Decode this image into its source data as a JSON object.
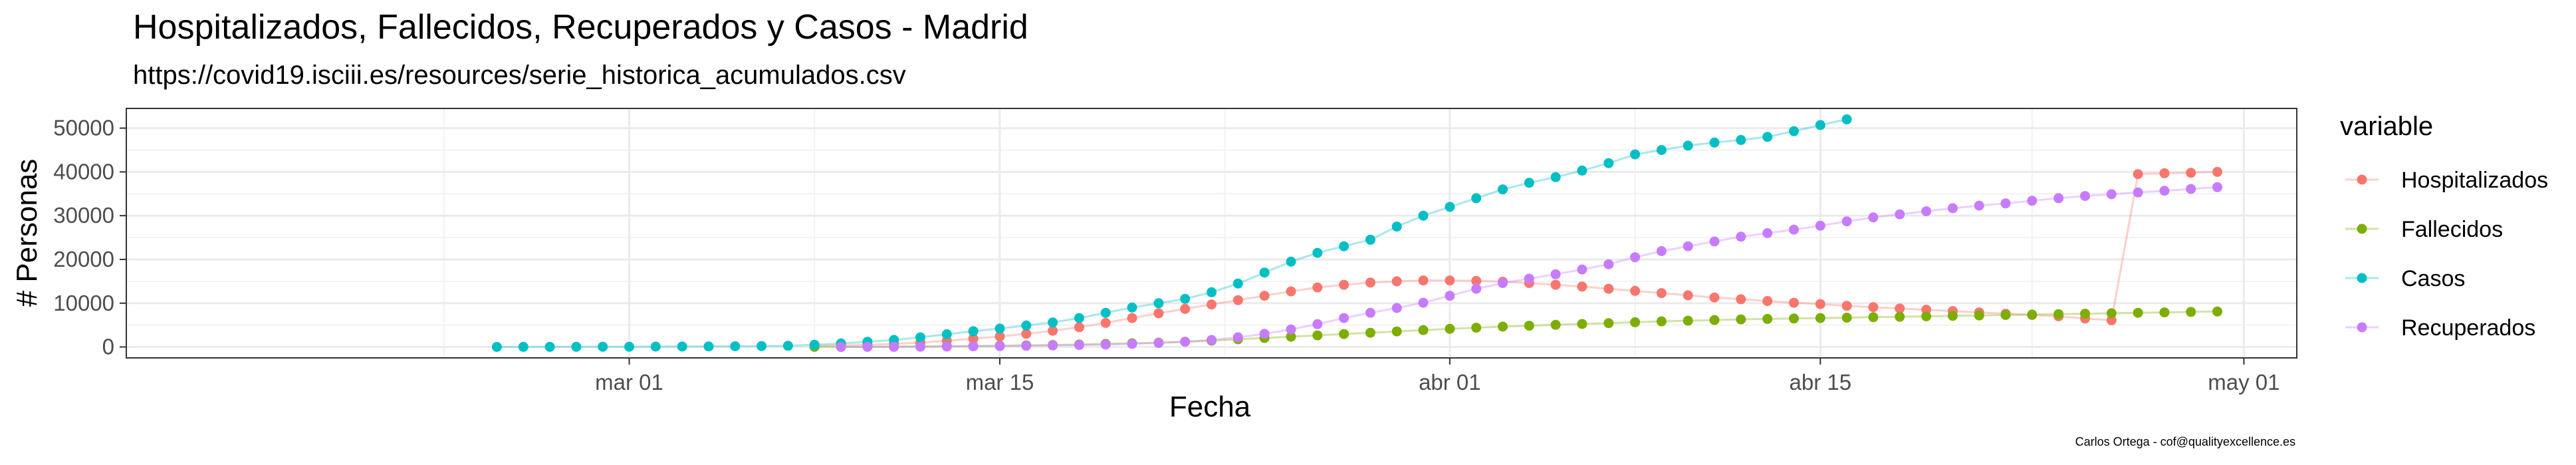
{
  "chart_data": {
    "type": "line",
    "title": "Hospitalizados, Fallecidos, Recuperados y Casos - Madrid",
    "subtitle": "https://covid19.isciii.es/resources/serie_historica_acumulados.csv",
    "xlabel": "Fecha",
    "ylabel": "# Personas",
    "caption": "Carlos Ortega - cof@qualityexcellence.es",
    "x_axis": "date",
    "xlim": [
      "2020-02-11",
      "2020-05-03"
    ],
    "ylim": [
      -2500,
      54500
    ],
    "grid": true,
    "x_ticks": [
      {
        "date": "2020-03-01",
        "label": "mar 01"
      },
      {
        "date": "2020-03-15",
        "label": "mar 15"
      },
      {
        "date": "2020-04-01",
        "label": "abr 01"
      },
      {
        "date": "2020-04-15",
        "label": "abr 15"
      },
      {
        "date": "2020-05-01",
        "label": "may 01"
      }
    ],
    "y_ticks": [
      0,
      10000,
      20000,
      30000,
      40000,
      50000
    ],
    "legend": {
      "title": "variable",
      "position": "right"
    },
    "series": [
      {
        "name": "Hospitalizados",
        "color": "#F8766D",
        "points": [
          [
            "2020-03-08",
            240
          ],
          [
            "2020-03-09",
            340
          ],
          [
            "2020-03-10",
            480
          ],
          [
            "2020-03-11",
            700
          ],
          [
            "2020-03-12",
            1000
          ],
          [
            "2020-03-13",
            1400
          ],
          [
            "2020-03-14",
            1900
          ],
          [
            "2020-03-15",
            2400
          ],
          [
            "2020-03-16",
            3000
          ],
          [
            "2020-03-17",
            3700
          ],
          [
            "2020-03-18",
            4500
          ],
          [
            "2020-03-19",
            5500
          ],
          [
            "2020-03-20",
            6600
          ],
          [
            "2020-03-21",
            7700
          ],
          [
            "2020-03-22",
            8700
          ],
          [
            "2020-03-23",
            9700
          ],
          [
            "2020-03-24",
            10700
          ],
          [
            "2020-03-25",
            11700
          ],
          [
            "2020-03-26",
            12700
          ],
          [
            "2020-03-27",
            13600
          ],
          [
            "2020-03-28",
            14200
          ],
          [
            "2020-03-29",
            14700
          ],
          [
            "2020-03-30",
            15000
          ],
          [
            "2020-03-31",
            15200
          ],
          [
            "2020-04-01",
            15200
          ],
          [
            "2020-04-02",
            15100
          ],
          [
            "2020-04-03",
            14900
          ],
          [
            "2020-04-04",
            14600
          ],
          [
            "2020-04-05",
            14200
          ],
          [
            "2020-04-06",
            13800
          ],
          [
            "2020-04-07",
            13300
          ],
          [
            "2020-04-08",
            12800
          ],
          [
            "2020-04-09",
            12300
          ],
          [
            "2020-04-10",
            11800
          ],
          [
            "2020-04-11",
            11300
          ],
          [
            "2020-04-12",
            10900
          ],
          [
            "2020-04-13",
            10500
          ],
          [
            "2020-04-14",
            10100
          ],
          [
            "2020-04-15",
            9800
          ],
          [
            "2020-04-16",
            9400
          ],
          [
            "2020-04-17",
            9100
          ],
          [
            "2020-04-18",
            8800
          ],
          [
            "2020-04-19",
            8500
          ],
          [
            "2020-04-20",
            8200
          ],
          [
            "2020-04-21",
            7900
          ],
          [
            "2020-04-22",
            7600
          ],
          [
            "2020-04-23",
            7300
          ],
          [
            "2020-04-24",
            7000
          ],
          [
            "2020-04-25",
            6500
          ],
          [
            "2020-04-26",
            6100
          ],
          [
            "2020-04-27",
            39500
          ],
          [
            "2020-04-28",
            39700
          ],
          [
            "2020-04-29",
            39800
          ],
          [
            "2020-04-30",
            40000
          ]
        ]
      },
      {
        "name": "Fallecidos",
        "color": "#7CAE00",
        "points": [
          [
            "2020-03-08",
            20
          ],
          [
            "2020-03-09",
            30
          ],
          [
            "2020-03-10",
            50
          ],
          [
            "2020-03-11",
            80
          ],
          [
            "2020-03-12",
            120
          ],
          [
            "2020-03-13",
            170
          ],
          [
            "2020-03-14",
            220
          ],
          [
            "2020-03-15",
            300
          ],
          [
            "2020-03-16",
            380
          ],
          [
            "2020-03-17",
            450
          ],
          [
            "2020-03-18",
            550
          ],
          [
            "2020-03-19",
            700
          ],
          [
            "2020-03-20",
            850
          ],
          [
            "2020-03-21",
            1000
          ],
          [
            "2020-03-22",
            1200
          ],
          [
            "2020-03-23",
            1450
          ],
          [
            "2020-03-24",
            1750
          ],
          [
            "2020-03-25",
            2050
          ],
          [
            "2020-03-26",
            2350
          ],
          [
            "2020-03-27",
            2650
          ],
          [
            "2020-03-28",
            2950
          ],
          [
            "2020-03-29",
            3250
          ],
          [
            "2020-03-30",
            3550
          ],
          [
            "2020-03-31",
            3850
          ],
          [
            "2020-04-01",
            4150
          ],
          [
            "2020-04-02",
            4400
          ],
          [
            "2020-04-03",
            4650
          ],
          [
            "2020-04-04",
            4850
          ],
          [
            "2020-04-05",
            5050
          ],
          [
            "2020-04-06",
            5250
          ],
          [
            "2020-04-07",
            5450
          ],
          [
            "2020-04-08",
            5650
          ],
          [
            "2020-04-09",
            5850
          ],
          [
            "2020-04-10",
            6000
          ],
          [
            "2020-04-11",
            6150
          ],
          [
            "2020-04-12",
            6300
          ],
          [
            "2020-04-13",
            6400
          ],
          [
            "2020-04-14",
            6500
          ],
          [
            "2020-04-15",
            6600
          ],
          [
            "2020-04-16",
            6700
          ],
          [
            "2020-04-17",
            6800
          ],
          [
            "2020-04-18",
            6900
          ],
          [
            "2020-04-19",
            7000
          ],
          [
            "2020-04-20",
            7100
          ],
          [
            "2020-04-21",
            7200
          ],
          [
            "2020-04-22",
            7300
          ],
          [
            "2020-04-23",
            7400
          ],
          [
            "2020-04-24",
            7500
          ],
          [
            "2020-04-25",
            7600
          ],
          [
            "2020-04-26",
            7700
          ],
          [
            "2020-04-27",
            7800
          ],
          [
            "2020-04-28",
            7900
          ],
          [
            "2020-04-29",
            8000
          ],
          [
            "2020-04-30",
            8100
          ]
        ]
      },
      {
        "name": "Casos",
        "color": "#00BFC4",
        "points": [
          [
            "2020-02-25",
            10
          ],
          [
            "2020-02-26",
            20
          ],
          [
            "2020-02-27",
            30
          ],
          [
            "2020-02-28",
            40
          ],
          [
            "2020-02-29",
            50
          ],
          [
            "2020-03-01",
            60
          ],
          [
            "2020-03-02",
            80
          ],
          [
            "2020-03-03",
            100
          ],
          [
            "2020-03-04",
            130
          ],
          [
            "2020-03-05",
            160
          ],
          [
            "2020-03-06",
            200
          ],
          [
            "2020-03-07",
            260
          ],
          [
            "2020-03-08",
            500
          ],
          [
            "2020-03-09",
            800
          ],
          [
            "2020-03-10",
            1200
          ],
          [
            "2020-03-11",
            1600
          ],
          [
            "2020-03-12",
            2200
          ],
          [
            "2020-03-13",
            2900
          ],
          [
            "2020-03-14",
            3600
          ],
          [
            "2020-03-15",
            4200
          ],
          [
            "2020-03-16",
            4900
          ],
          [
            "2020-03-17",
            5600
          ],
          [
            "2020-03-18",
            6600
          ],
          [
            "2020-03-19",
            7800
          ],
          [
            "2020-03-20",
            9000
          ],
          [
            "2020-03-21",
            10000
          ],
          [
            "2020-03-22",
            11000
          ],
          [
            "2020-03-23",
            12500
          ],
          [
            "2020-03-24",
            14500
          ],
          [
            "2020-03-25",
            17000
          ],
          [
            "2020-03-26",
            19500
          ],
          [
            "2020-03-27",
            21500
          ],
          [
            "2020-03-28",
            23000
          ],
          [
            "2020-03-29",
            24500
          ],
          [
            "2020-03-30",
            27500
          ],
          [
            "2020-03-31",
            30000
          ],
          [
            "2020-04-01",
            32000
          ],
          [
            "2020-04-02",
            34000
          ],
          [
            "2020-04-03",
            36000
          ],
          [
            "2020-04-04",
            37500
          ],
          [
            "2020-04-05",
            38800
          ],
          [
            "2020-04-06",
            40300
          ],
          [
            "2020-04-07",
            42000
          ],
          [
            "2020-04-08",
            44000
          ],
          [
            "2020-04-09",
            45000
          ],
          [
            "2020-04-10",
            46000
          ],
          [
            "2020-04-11",
            46700
          ],
          [
            "2020-04-12",
            47300
          ],
          [
            "2020-04-13",
            48000
          ],
          [
            "2020-04-14",
            49300
          ],
          [
            "2020-04-15",
            50700
          ],
          [
            "2020-04-16",
            52000
          ]
        ]
      },
      {
        "name": "Recuperados",
        "color": "#C77CFF",
        "points": [
          [
            "2020-03-09",
            0
          ],
          [
            "2020-03-10",
            10
          ],
          [
            "2020-03-11",
            30
          ],
          [
            "2020-03-12",
            60
          ],
          [
            "2020-03-13",
            100
          ],
          [
            "2020-03-14",
            150
          ],
          [
            "2020-03-15",
            200
          ],
          [
            "2020-03-16",
            270
          ],
          [
            "2020-03-17",
            350
          ],
          [
            "2020-03-18",
            450
          ],
          [
            "2020-03-19",
            560
          ],
          [
            "2020-03-20",
            700
          ],
          [
            "2020-03-21",
            900
          ],
          [
            "2020-03-22",
            1200
          ],
          [
            "2020-03-23",
            1600
          ],
          [
            "2020-03-24",
            2200
          ],
          [
            "2020-03-25",
            3000
          ],
          [
            "2020-03-26",
            4000
          ],
          [
            "2020-03-27",
            5200
          ],
          [
            "2020-03-28",
            6600
          ],
          [
            "2020-03-29",
            7800
          ],
          [
            "2020-03-30",
            8900
          ],
          [
            "2020-03-31",
            10100
          ],
          [
            "2020-04-01",
            11700
          ],
          [
            "2020-04-02",
            13300
          ],
          [
            "2020-04-03",
            14600
          ],
          [
            "2020-04-04",
            15600
          ],
          [
            "2020-04-05",
            16600
          ],
          [
            "2020-04-06",
            17700
          ],
          [
            "2020-04-07",
            18900
          ],
          [
            "2020-04-08",
            20500
          ],
          [
            "2020-04-09",
            21900
          ],
          [
            "2020-04-10",
            23000
          ],
          [
            "2020-04-11",
            24100
          ],
          [
            "2020-04-12",
            25200
          ],
          [
            "2020-04-13",
            26000
          ],
          [
            "2020-04-14",
            26800
          ],
          [
            "2020-04-15",
            27700
          ],
          [
            "2020-04-16",
            28700
          ],
          [
            "2020-04-17",
            29600
          ],
          [
            "2020-04-18",
            30300
          ],
          [
            "2020-04-19",
            31000
          ],
          [
            "2020-04-20",
            31700
          ],
          [
            "2020-04-21",
            32300
          ],
          [
            "2020-04-22",
            32800
          ],
          [
            "2020-04-23",
            33400
          ],
          [
            "2020-04-24",
            34000
          ],
          [
            "2020-04-25",
            34500
          ],
          [
            "2020-04-26",
            34900
          ],
          [
            "2020-04-27",
            35300
          ],
          [
            "2020-04-28",
            35700
          ],
          [
            "2020-04-29",
            36100
          ],
          [
            "2020-04-30",
            36500
          ]
        ]
      }
    ]
  }
}
